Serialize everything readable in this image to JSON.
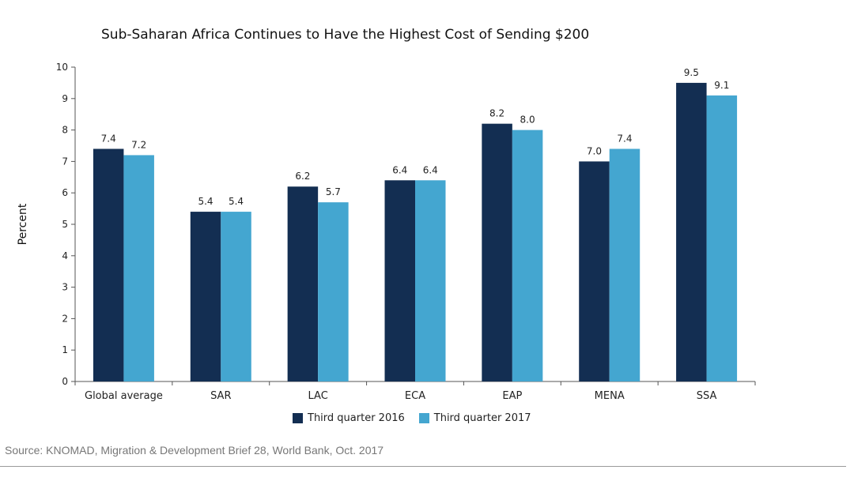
{
  "chart_data": {
    "type": "bar",
    "title": "Sub-Saharan Africa Continues to Have the Highest Cost of Sending $200",
    "xlabel": "",
    "ylabel": "Percent",
    "ylim": [
      0,
      10
    ],
    "yticks": [
      0,
      1,
      2,
      3,
      4,
      5,
      6,
      7,
      8,
      9,
      10
    ],
    "categories": [
      "Global average",
      "SAR",
      "LAC",
      "ECA",
      "EAP",
      "MENA",
      "SSA"
    ],
    "series": [
      {
        "name": "Third quarter 2016",
        "color": "#132e52",
        "values": [
          7.4,
          5.4,
          6.2,
          6.4,
          8.2,
          7.0,
          9.5
        ],
        "labels": [
          "7.4",
          "5.4",
          "6.2",
          "6.4",
          "8.2",
          "7.0",
          "9.5"
        ]
      },
      {
        "name": "Third quarter 2017",
        "color": "#44a6d0",
        "values": [
          7.2,
          5.4,
          5.7,
          6.4,
          8.0,
          7.4,
          9.1
        ],
        "labels": [
          "7.2",
          "5.4",
          "5.7",
          "6.4",
          "8.0",
          "7.4",
          "9.1"
        ]
      }
    ],
    "legend_position": "bottom",
    "grid": false
  },
  "source": "Source: KNOMAD, Migration & Development Brief 28, World Bank, Oct. 2017"
}
